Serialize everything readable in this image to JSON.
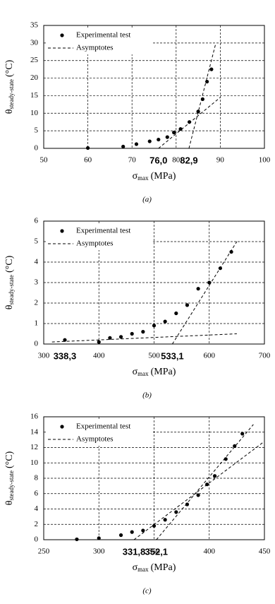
{
  "chart_data": [
    {
      "type": "scatter",
      "xlim": [
        50,
        100
      ],
      "xticks": [
        50,
        60,
        70,
        80,
        90,
        100
      ],
      "ylim": [
        0,
        35
      ],
      "yticks": [
        0,
        5,
        10,
        15,
        20,
        25,
        30,
        35
      ],
      "grid": true,
      "legend": "top-left",
      "xlabel": {
        "symbol": "σ",
        "subscript": "max",
        "unit": "(MPa)"
      },
      "ylabel": {
        "symbol": "θ",
        "subscript": "steady-state",
        "unit": "(°C)"
      },
      "series": [
        {
          "name": "Experimental test",
          "color": "#000000",
          "x": [
            60,
            68,
            71,
            74,
            76,
            78,
            79.5,
            81,
            83,
            85,
            86,
            87,
            88
          ],
          "values": [
            0.1,
            0.5,
            1.2,
            2,
            2.5,
            3.2,
            4.5,
            5.5,
            7.5,
            10.5,
            14,
            19,
            22.5
          ]
        }
      ],
      "asymptotes": {
        "name": "Asymptotes",
        "color": "#000000",
        "lines": [
          {
            "x": [
              76,
              90
            ],
            "values": [
              0,
              14.5
            ]
          },
          {
            "x": [
              82.9,
              89
            ],
            "values": [
              0,
              30
            ]
          }
        ]
      },
      "annotations": [
        {
          "text": "76,0",
          "x": 76
        },
        {
          "text": "82,9",
          "x": 82.9
        }
      ],
      "caption": "(a)"
    },
    {
      "type": "scatter",
      "xlim": [
        300,
        700
      ],
      "xticks": [
        300,
        400,
        500,
        600,
        700
      ],
      "ylim": [
        0,
        6
      ],
      "yticks": [
        0,
        1,
        2,
        3,
        4,
        5,
        6
      ],
      "grid": true,
      "legend": "top-left",
      "xlabel": {
        "symbol": "σ",
        "subscript": "max",
        "unit": "(MPa)"
      },
      "ylabel": {
        "symbol": "θ",
        "subscript": "steady-state",
        "unit": "(°C)"
      },
      "series": [
        {
          "name": "Experimental test",
          "color": "#000000",
          "x": [
            338.3,
            400,
            420,
            440,
            460,
            480,
            500,
            520,
            540,
            560,
            580,
            600,
            620,
            640
          ],
          "values": [
            0.2,
            0.1,
            0.3,
            0.35,
            0.5,
            0.6,
            0.9,
            1.1,
            1.5,
            1.9,
            2.7,
            3,
            3.7,
            4.5
          ]
        }
      ],
      "asymptotes": {
        "name": "Asymptotes",
        "color": "#000000",
        "lines": [
          {
            "x": [
              315,
              650
            ],
            "values": [
              0.1,
              0.5
            ]
          },
          {
            "x": [
              533.1,
              650
            ],
            "values": [
              0,
              5
            ]
          }
        ]
      },
      "annotations": [
        {
          "text": "338,3",
          "x": 338.3
        },
        {
          "text": "533,1",
          "x": 533.1
        }
      ],
      "caption": "(b)"
    },
    {
      "type": "scatter",
      "xlim": [
        250,
        450
      ],
      "xticks": [
        250,
        300,
        350,
        400,
        450
      ],
      "ylim": [
        0,
        16
      ],
      "yticks": [
        0,
        2,
        4,
        6,
        8,
        10,
        12,
        14,
        16
      ],
      "grid": true,
      "legend": "top-left",
      "xlabel": {
        "symbol": "σ",
        "subscript": "max",
        "unit": "(MPa)"
      },
      "ylabel": {
        "symbol": "θ",
        "subscript": "steady-state",
        "unit": "(°C)"
      },
      "series": [
        {
          "name": "Experimental test",
          "color": "#000000",
          "x": [
            280,
            300,
            320,
            330,
            340,
            350,
            360,
            370,
            380,
            390,
            398,
            405,
            415,
            423,
            430
          ],
          "values": [
            0.05,
            0.2,
            0.6,
            1,
            1.2,
            1.8,
            2.6,
            3.6,
            4.6,
            5.8,
            7.2,
            8.3,
            10.5,
            12.2,
            13.8
          ]
        }
      ],
      "asymptotes": {
        "name": "Asymptotes",
        "color": "#000000",
        "lines": [
          {
            "x": [
              331.8,
              450
            ],
            "values": [
              0,
              12.8
            ]
          },
          {
            "x": [
              352.1,
              440
            ],
            "values": [
              0,
              15
            ]
          }
        ]
      },
      "annotations": [
        {
          "text": "331,8",
          "x": 331.8
        },
        {
          "text": "352,1",
          "x": 352.1
        }
      ],
      "caption": "(c)"
    }
  ]
}
